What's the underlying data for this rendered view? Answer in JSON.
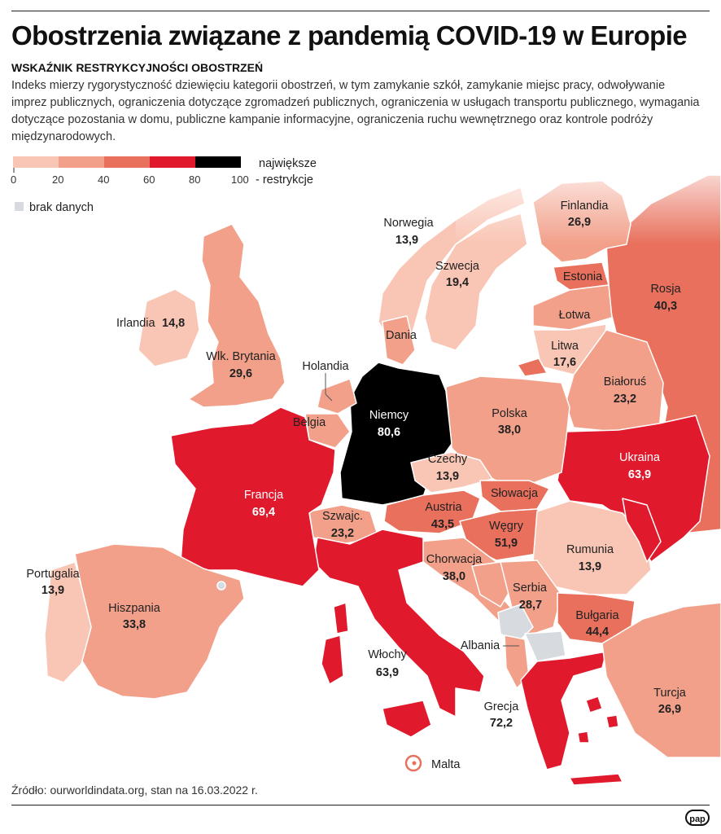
{
  "header": {
    "title": "Obostrzenia związane z pandemią COVID-19 w Europie",
    "subtitle": "WSKAŹNIK RESTRYKCYJNOŚCI OBOSTRZEŃ",
    "description": "Indeks mierzy rygorystyczność dziewięciu kategorii obostrzeń, w tym zamykanie szkół, zamykanie miejsc pracy, odwoływanie imprez publicznych, ograniczenia dotyczące zgromadzeń publicznych, ograniczenia w usługach transportu publicznego, wymagania dotyczące pozostania w domu, publiczne kampanie informacyjne, ograniczenia ruchu wewnętrznego oraz kontrole podróży międzynarodowych."
  },
  "legend": {
    "ticks": [
      "0",
      "20",
      "40",
      "60",
      "80",
      "100"
    ],
    "label_line1": "największe",
    "label_line2": "- restrykcje",
    "no_data": "brak danych",
    "colors": [
      "#f9c5b4",
      "#f2a08a",
      "#e8705c",
      "#e0192d",
      "#000000"
    ],
    "no_data_color": "#d7dbdf"
  },
  "countries": [
    {
      "name": "Finlandia",
      "value": "26,9",
      "color": "#f2a08a"
    },
    {
      "name": "Norwegia",
      "value": "13,9",
      "color": "#f9c5b4"
    },
    {
      "name": "Szwecja",
      "value": "19,4",
      "color": "#f9c5b4"
    },
    {
      "name": "Estonia",
      "value": "",
      "color": "#e8705c"
    },
    {
      "name": "Rosja",
      "value": "40,3",
      "color": "#e8705c"
    },
    {
      "name": "Łotwa",
      "value": "",
      "color": "#f2a08a"
    },
    {
      "name": "Litwa",
      "value": "17,6",
      "color": "#f9c5b4"
    },
    {
      "name": "Irlandia",
      "value": "14,8",
      "color": "#f9c5b4"
    },
    {
      "name": "Dania",
      "value": "",
      "color": "#f2a08a"
    },
    {
      "name": "Wlk. Brytania",
      "value": "29,6",
      "color": "#f2a08a"
    },
    {
      "name": "Holandia",
      "value": "",
      "color": "#f2a08a"
    },
    {
      "name": "Białoruś",
      "value": "23,2",
      "color": "#f2a08a"
    },
    {
      "name": "Belgia",
      "value": "",
      "color": "#f2a08a"
    },
    {
      "name": "Niemcy",
      "value": "80,6",
      "color": "#000000"
    },
    {
      "name": "Polska",
      "value": "38,0",
      "color": "#f2a08a"
    },
    {
      "name": "Ukraina",
      "value": "63,9",
      "color": "#e0192d"
    },
    {
      "name": "Czechy",
      "value": "13,9",
      "color": "#f9c5b4"
    },
    {
      "name": "Francja",
      "value": "69,4",
      "color": "#e0192d"
    },
    {
      "name": "Słowacja",
      "value": "",
      "color": "#e8705c"
    },
    {
      "name": "Austria",
      "value": "43,5",
      "color": "#e8705c"
    },
    {
      "name": "Szwajc.",
      "value": "23,2",
      "color": "#f2a08a"
    },
    {
      "name": "Węgry",
      "value": "51,9",
      "color": "#e8705c"
    },
    {
      "name": "Rumunia",
      "value": "13,9",
      "color": "#f9c5b4"
    },
    {
      "name": "Chorwacja",
      "value": "38,0",
      "color": "#f2a08a"
    },
    {
      "name": "Portugalia",
      "value": "13,9",
      "color": "#f9c5b4"
    },
    {
      "name": "Serbia",
      "value": "28,7",
      "color": "#f2a08a"
    },
    {
      "name": "Hiszpania",
      "value": "33,8",
      "color": "#f2a08a"
    },
    {
      "name": "Bułgaria",
      "value": "44,4",
      "color": "#e8705c"
    },
    {
      "name": "Albania",
      "value": "",
      "color": "#f2a08a"
    },
    {
      "name": "Włochy",
      "value": "63,9",
      "color": "#e0192d"
    },
    {
      "name": "Turcja",
      "value": "26,9",
      "color": "#f2a08a"
    },
    {
      "name": "Grecja",
      "value": "72,2",
      "color": "#e0192d"
    },
    {
      "name": "Malta",
      "value": "",
      "color": "#e8705c"
    }
  ],
  "footer": {
    "source": "Źródło: ourworldindata.org, stan na 16.03.2022 r.",
    "logo": "pap"
  }
}
